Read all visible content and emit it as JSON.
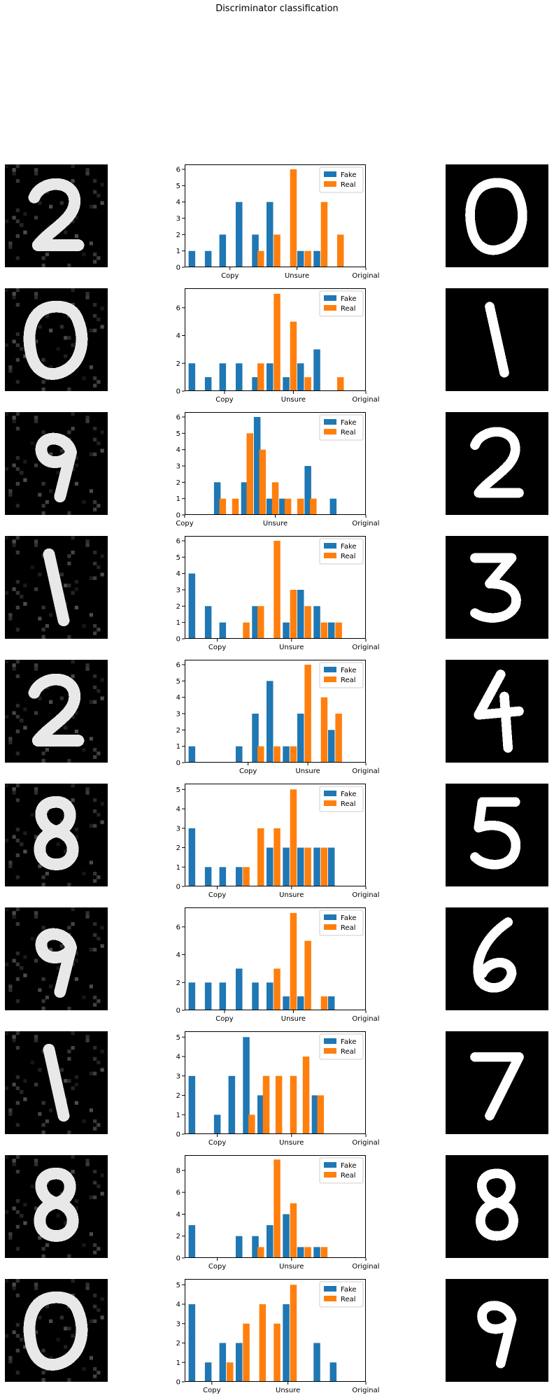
{
  "suptitle": "Discriminator classification",
  "colors": {
    "fake": "#1f77b4",
    "real": "#ff7f0e"
  },
  "legend": {
    "fake": "Fake",
    "real": "Real",
    "placement": "upper right"
  },
  "chart_data": [
    {
      "type": "bar",
      "xticks": [
        [
          0.25,
          "Copy"
        ],
        [
          0.62,
          "Unsure"
        ],
        [
          1,
          "Original"
        ]
      ],
      "ylim": [
        0,
        6.3
      ],
      "yticks": [
        0,
        1,
        2,
        3,
        4,
        5,
        6
      ],
      "series": [
        {
          "name": "Fake",
          "values": [
            [
              0.04,
              1
            ],
            [
              0.13,
              1
            ],
            [
              0.21,
              2
            ],
            [
              0.3,
              4
            ],
            [
              0.39,
              2
            ],
            [
              0.47,
              4
            ],
            [
              0.64,
              1
            ],
            [
              0.73,
              1
            ]
          ]
        },
        {
          "name": "Real",
          "values": [
            [
              0.42,
              1
            ],
            [
              0.51,
              2
            ],
            [
              0.6,
              6
            ],
            [
              0.68,
              1
            ],
            [
              0.77,
              4
            ],
            [
              0.86,
              2
            ]
          ]
        }
      ]
    },
    {
      "type": "bar",
      "xticks": [
        [
          0.22,
          "Copy"
        ],
        [
          0.6,
          "Unsure"
        ],
        [
          1,
          "Original"
        ]
      ],
      "ylim": [
        0,
        7.4
      ],
      "yticks": [
        0,
        2,
        4,
        6
      ],
      "series": [
        {
          "name": "Fake",
          "values": [
            [
              0.04,
              2
            ],
            [
              0.13,
              1
            ],
            [
              0.21,
              2
            ],
            [
              0.3,
              2
            ],
            [
              0.39,
              1
            ],
            [
              0.47,
              2
            ],
            [
              0.56,
              1
            ],
            [
              0.64,
              2
            ],
            [
              0.73,
              3
            ]
          ]
        },
        {
          "name": "Real",
          "values": [
            [
              0.42,
              2
            ],
            [
              0.51,
              7
            ],
            [
              0.6,
              5
            ],
            [
              0.68,
              1
            ],
            [
              0.86,
              1
            ]
          ]
        }
      ]
    },
    {
      "type": "bar",
      "xticks": [
        [
          0,
          "Copy"
        ],
        [
          0.5,
          "Unsure"
        ],
        [
          1,
          "Original"
        ]
      ],
      "ylim": [
        0,
        6.3
      ],
      "yticks": [
        0,
        1,
        2,
        3,
        4,
        5,
        6
      ],
      "series": [
        {
          "name": "Fake",
          "values": [
            [
              0.18,
              2
            ],
            [
              0.33,
              2
            ],
            [
              0.4,
              6
            ],
            [
              0.47,
              1
            ],
            [
              0.54,
              1
            ],
            [
              0.68,
              3
            ],
            [
              0.82,
              1
            ]
          ]
        },
        {
          "name": "Real",
          "values": [
            [
              0.21,
              1
            ],
            [
              0.28,
              1
            ],
            [
              0.36,
              5
            ],
            [
              0.43,
              4
            ],
            [
              0.5,
              2
            ],
            [
              0.57,
              1
            ],
            [
              0.64,
              1
            ],
            [
              0.71,
              1
            ]
          ]
        }
      ]
    },
    {
      "type": "bar",
      "xticks": [
        [
          0.18,
          "Copy"
        ],
        [
          0.59,
          "Unsure"
        ],
        [
          1,
          "Original"
        ]
      ],
      "ylim": [
        0,
        6.3
      ],
      "yticks": [
        0,
        1,
        2,
        3,
        4,
        5,
        6
      ],
      "series": [
        {
          "name": "Fake",
          "values": [
            [
              0.04,
              4
            ],
            [
              0.13,
              2
            ],
            [
              0.21,
              1
            ],
            [
              0.39,
              2
            ],
            [
              0.56,
              1
            ],
            [
              0.64,
              3
            ],
            [
              0.73,
              2
            ],
            [
              0.81,
              1
            ]
          ]
        },
        {
          "name": "Real",
          "values": [
            [
              0.34,
              1
            ],
            [
              0.42,
              2
            ],
            [
              0.51,
              6
            ],
            [
              0.6,
              3
            ],
            [
              0.68,
              2
            ],
            [
              0.77,
              1
            ],
            [
              0.85,
              1
            ]
          ]
        }
      ]
    },
    {
      "type": "bar",
      "xticks": [
        [
          0.35,
          "Copy"
        ],
        [
          0.68,
          "Unsure"
        ],
        [
          1,
          "Original"
        ]
      ],
      "ylim": [
        0,
        6.3
      ],
      "yticks": [
        0,
        1,
        2,
        3,
        4,
        5,
        6
      ],
      "series": [
        {
          "name": "Fake",
          "values": [
            [
              0.04,
              1
            ],
            [
              0.3,
              1
            ],
            [
              0.39,
              3
            ],
            [
              0.47,
              5
            ],
            [
              0.56,
              1
            ],
            [
              0.64,
              3
            ],
            [
              0.81,
              2
            ]
          ]
        },
        {
          "name": "Real",
          "values": [
            [
              0.42,
              1
            ],
            [
              0.51,
              1
            ],
            [
              0.6,
              1
            ],
            [
              0.68,
              6
            ],
            [
              0.77,
              4
            ],
            [
              0.85,
              3
            ]
          ]
        }
      ]
    },
    {
      "type": "bar",
      "xticks": [
        [
          0.18,
          "Copy"
        ],
        [
          0.59,
          "Unsure"
        ],
        [
          1,
          "Original"
        ]
      ],
      "ylim": [
        0,
        5.3
      ],
      "yticks": [
        0,
        1,
        2,
        3,
        4,
        5
      ],
      "series": [
        {
          "name": "Fake",
          "values": [
            [
              0.04,
              3
            ],
            [
              0.13,
              1
            ],
            [
              0.21,
              1
            ],
            [
              0.3,
              1
            ],
            [
              0.47,
              2
            ],
            [
              0.56,
              2
            ],
            [
              0.64,
              2
            ],
            [
              0.73,
              2
            ],
            [
              0.81,
              2
            ]
          ]
        },
        {
          "name": "Real",
          "values": [
            [
              0.34,
              1
            ],
            [
              0.42,
              3
            ],
            [
              0.51,
              3
            ],
            [
              0.6,
              5
            ],
            [
              0.68,
              2
            ],
            [
              0.77,
              2
            ]
          ]
        }
      ]
    },
    {
      "type": "bar",
      "xticks": [
        [
          0.22,
          "Copy"
        ],
        [
          0.6,
          "Unsure"
        ],
        [
          1,
          "Original"
        ]
      ],
      "ylim": [
        0,
        7.4
      ],
      "yticks": [
        0,
        2,
        4,
        6
      ],
      "series": [
        {
          "name": "Fake",
          "values": [
            [
              0.04,
              2
            ],
            [
              0.13,
              2
            ],
            [
              0.21,
              2
            ],
            [
              0.3,
              3
            ],
            [
              0.39,
              2
            ],
            [
              0.47,
              2
            ],
            [
              0.56,
              1
            ],
            [
              0.64,
              1
            ],
            [
              0.81,
              1
            ]
          ]
        },
        {
          "name": "Real",
          "values": [
            [
              0.51,
              3
            ],
            [
              0.6,
              7
            ],
            [
              0.68,
              5
            ],
            [
              0.77,
              1
            ]
          ]
        }
      ]
    },
    {
      "type": "bar",
      "xticks": [
        [
          0.18,
          "Copy"
        ],
        [
          0.59,
          "Unsure"
        ],
        [
          1,
          "Original"
        ]
      ],
      "ylim": [
        0,
        5.3
      ],
      "yticks": [
        0,
        1,
        2,
        3,
        4,
        5
      ],
      "series": [
        {
          "name": "Fake",
          "values": [
            [
              0.04,
              3
            ],
            [
              0.18,
              1
            ],
            [
              0.26,
              3
            ],
            [
              0.34,
              5
            ],
            [
              0.42,
              2
            ],
            [
              0.72,
              2
            ]
          ]
        },
        {
          "name": "Real",
          "values": [
            [
              0.37,
              1
            ],
            [
              0.45,
              3
            ],
            [
              0.52,
              3
            ],
            [
              0.6,
              3
            ],
            [
              0.67,
              4
            ],
            [
              0.75,
              2
            ]
          ]
        }
      ]
    },
    {
      "type": "bar",
      "xticks": [
        [
          0.18,
          "Copy"
        ],
        [
          0.59,
          "Unsure"
        ],
        [
          1,
          "Original"
        ]
      ],
      "ylim": [
        0,
        9.4
      ],
      "yticks": [
        0,
        2,
        4,
        6,
        8
      ],
      "series": [
        {
          "name": "Fake",
          "values": [
            [
              0.04,
              3
            ],
            [
              0.3,
              2
            ],
            [
              0.39,
              2
            ],
            [
              0.47,
              3
            ],
            [
              0.56,
              4
            ],
            [
              0.64,
              1
            ],
            [
              0.73,
              1
            ]
          ]
        },
        {
          "name": "Real",
          "values": [
            [
              0.42,
              1
            ],
            [
              0.51,
              9
            ],
            [
              0.6,
              5
            ],
            [
              0.68,
              1
            ],
            [
              0.77,
              1
            ]
          ]
        }
      ]
    },
    {
      "type": "bar",
      "xticks": [
        [
          0.15,
          "Copy"
        ],
        [
          0.57,
          "Unsure"
        ],
        [
          1,
          "Original"
        ]
      ],
      "ylim": [
        0,
        5.3
      ],
      "yticks": [
        0,
        1,
        2,
        3,
        4,
        5
      ],
      "series": [
        {
          "name": "Fake",
          "values": [
            [
              0.04,
              4
            ],
            [
              0.13,
              1
            ],
            [
              0.21,
              2
            ],
            [
              0.3,
              2
            ],
            [
              0.56,
              4
            ],
            [
              0.73,
              2
            ],
            [
              0.82,
              1
            ]
          ]
        },
        {
          "name": "Real",
          "values": [
            [
              0.25,
              1
            ],
            [
              0.34,
              3
            ],
            [
              0.43,
              4
            ],
            [
              0.51,
              3
            ],
            [
              0.6,
              5
            ]
          ]
        }
      ]
    }
  ],
  "images": {
    "generated_digits": [
      "2",
      "0",
      "9",
      "1",
      "2",
      "8",
      "9",
      "1",
      "8",
      "0"
    ],
    "original_digits": [
      "0",
      "1",
      "2",
      "3",
      "4",
      "5",
      "6",
      "7",
      "8",
      "9"
    ]
  }
}
